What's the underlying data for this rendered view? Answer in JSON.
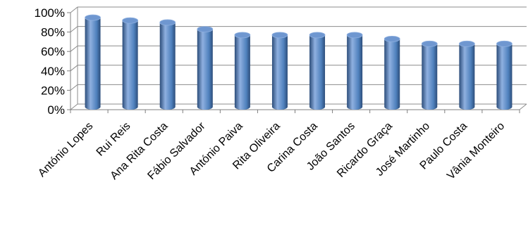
{
  "chart_data": {
    "type": "bar",
    "style": "3d-cylinder",
    "categories": [
      "António Lopes",
      "Rui Reis",
      "Ana Rita Costa",
      "Fábio Salvador",
      "António Paiva",
      "Rita Oliveira",
      "Carina Costa",
      "João Santos",
      "Ricardo Graça",
      "José Martinho",
      "Paulo Costa",
      "Vânia Monteiro"
    ],
    "values": [
      92,
      89,
      87,
      80,
      74,
      74,
      74,
      74,
      70,
      65,
      65,
      65
    ],
    "ylim": [
      0,
      100
    ],
    "yticks": [
      "0%",
      "20%",
      "40%",
      "60%",
      "80%",
      "100%"
    ],
    "title": "",
    "xlabel": "",
    "ylabel": "",
    "grid": true,
    "legend": "none",
    "colors": {
      "bar_light": "#8fb0e0",
      "bar_mid": "#4f81bd",
      "bar_dark": "#2c4d7a",
      "bar_top": "#6f97d0"
    }
  }
}
